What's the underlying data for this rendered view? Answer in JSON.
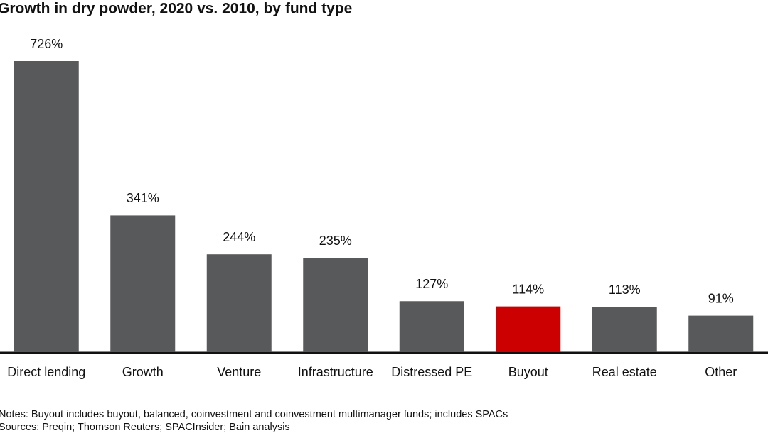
{
  "chart_data": {
    "type": "bar",
    "title": "Growth in dry powder, 2020 vs. 2010, by fund type",
    "categories": [
      "Direct lending",
      "Growth",
      "Venture",
      "Infrastructure",
      "Distressed PE",
      "Buyout",
      "Real estate",
      "Other"
    ],
    "values": [
      726,
      341,
      244,
      235,
      127,
      114,
      113,
      91
    ],
    "value_labels": [
      "726%",
      "341%",
      "244%",
      "235%",
      "127%",
      "114%",
      "113%",
      "91%"
    ],
    "colors": [
      "#58595b",
      "#58595b",
      "#58595b",
      "#58595b",
      "#58595b",
      "#cc0000",
      "#58595b",
      "#58595b"
    ],
    "ylim": [
      0,
      726
    ],
    "notes": [
      "Notes: Buyout includes buyout, balanced, coinvestment and coinvestment multimanager funds; includes SPACs",
      "Sources: Preqin; Thomson Reuters; SPACInsider; Bain analysis"
    ]
  }
}
